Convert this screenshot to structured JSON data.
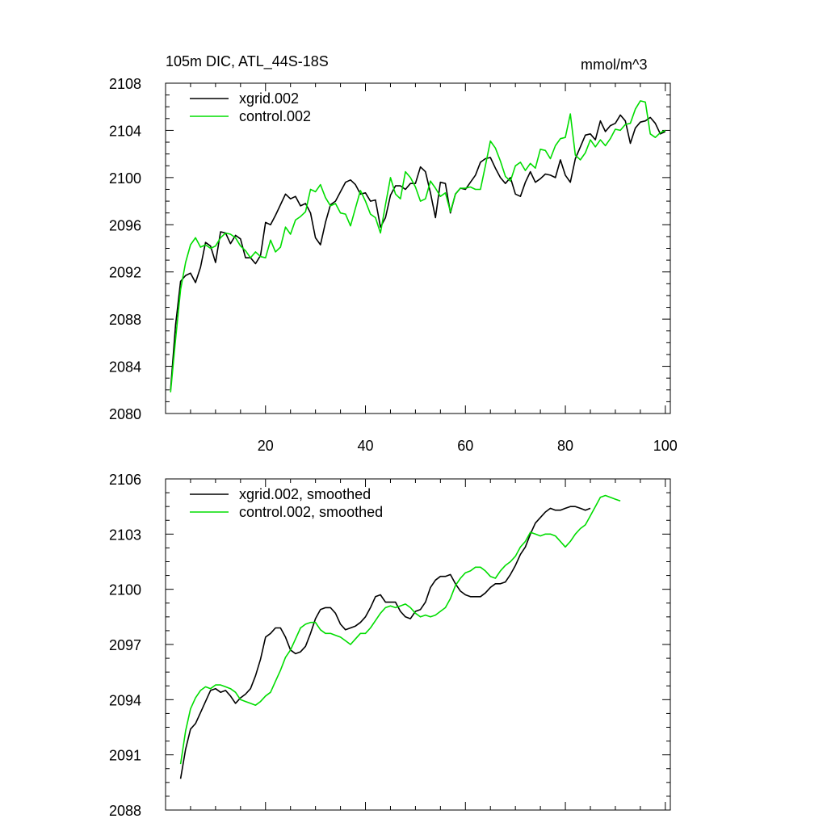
{
  "figure": {
    "left_title": "105m DIC, ATL_44S-18S",
    "right_title": "mmol/m^3"
  },
  "chart_data": [
    {
      "type": "line",
      "title": "105m DIC, ATL_44S-18S",
      "units": "mmol/m^3",
      "xlabel": "",
      "ylabel": "",
      "xlim": [
        0,
        101
      ],
      "ylim": [
        2080,
        2108
      ],
      "xticks": [
        20,
        40,
        60,
        80,
        100
      ],
      "yticks": [
        2080,
        2084,
        2088,
        2092,
        2096,
        2100,
        2104,
        2108
      ],
      "xtick_labels_visible": true,
      "grid": false,
      "legend": "top-left",
      "x_start": 1,
      "series": [
        {
          "name": "xgrid.002",
          "color": "#000000",
          "values": [
            2082.0,
            2087.5,
            2091.2,
            2091.7,
            2091.9,
            2091.1,
            2092.4,
            2094.5,
            2094.2,
            2092.8,
            2095.4,
            2095.3,
            2094.4,
            2095.1,
            2094.8,
            2093.2,
            2093.2,
            2092.7,
            2093.4,
            2096.2,
            2096.0,
            2096.8,
            2097.7,
            2098.6,
            2098.2,
            2098.4,
            2097.6,
            2097.8,
            2097.0,
            2094.9,
            2094.3,
            2096.2,
            2097.7,
            2098.0,
            2098.8,
            2099.6,
            2099.8,
            2099.4,
            2098.6,
            2098.7,
            2098.0,
            2098.1,
            2095.8,
            2096.6,
            2098.5,
            2099.3,
            2099.3,
            2099.0,
            2099.5,
            2099.5,
            2100.9,
            2100.5,
            2098.7,
            2096.6,
            2099.6,
            2099.5,
            2097.0,
            2098.6,
            2099.1,
            2099.0,
            2099.6,
            2100.2,
            2101.3,
            2101.6,
            2101.7,
            2100.8,
            2100.0,
            2099.5,
            2100.0,
            2098.6,
            2098.4,
            2099.6,
            2100.5,
            2099.6,
            2099.9,
            2100.3,
            2100.2,
            2100.0,
            2101.5,
            2100.2,
            2099.6,
            2101.6,
            2102.6,
            2103.6,
            2103.7,
            2103.2,
            2104.8,
            2103.9,
            2104.4,
            2104.6,
            2105.3,
            2104.8,
            2102.9,
            2104.2,
            2104.7,
            2104.8,
            2105.1,
            2104.6,
            2103.7,
            2103.9
          ]
        },
        {
          "name": "control.002",
          "color": "#00dd00",
          "values": [
            2081.8,
            2086.3,
            2090.5,
            2092.8,
            2094.3,
            2094.9,
            2094.1,
            2094.3,
            2094.0,
            2094.2,
            2094.9,
            2095.3,
            2095.2,
            2094.9,
            2094.2,
            2093.8,
            2093.2,
            2093.7,
            2093.3,
            2093.2,
            2094.7,
            2093.7,
            2094.1,
            2095.8,
            2095.2,
            2096.4,
            2096.7,
            2097.1,
            2099.0,
            2098.8,
            2099.4,
            2098.3,
            2097.6,
            2097.8,
            2097.0,
            2096.9,
            2095.9,
            2097.4,
            2098.9,
            2098.0,
            2096.9,
            2096.6,
            2095.3,
            2097.7,
            2100.0,
            2098.6,
            2098.2,
            2100.5,
            2100.0,
            2099.2,
            2098.0,
            2098.2,
            2099.7,
            2099.1,
            2098.4,
            2098.7,
            2097.1,
            2098.6,
            2099.1,
            2099.1,
            2099.2,
            2099.0,
            2099.0,
            2101.0,
            2103.1,
            2102.5,
            2101.4,
            2100.1,
            2099.7,
            2101.0,
            2101.3,
            2100.6,
            2101.2,
            2100.8,
            2102.4,
            2102.3,
            2101.6,
            2102.7,
            2103.3,
            2103.4,
            2105.4,
            2101.9,
            2101.5,
            2102.1,
            2103.2,
            2102.6,
            2103.2,
            2102.7,
            2103.3,
            2104.1,
            2104.0,
            2104.5,
            2104.6,
            2105.8,
            2106.5,
            2106.4,
            2103.7,
            2103.4,
            2103.8,
            2104.0
          ]
        }
      ]
    },
    {
      "type": "line",
      "title": "",
      "xlabel": "",
      "ylabel": "",
      "xlim": [
        0,
        101
      ],
      "ylim": [
        2088,
        2106
      ],
      "xticks": [
        20,
        40,
        60,
        80,
        100
      ],
      "yticks": [
        2088,
        2091,
        2094,
        2097,
        2100,
        2103,
        2106
      ],
      "xtick_labels_visible": false,
      "grid": false,
      "legend": "top-left",
      "x_start": 3,
      "series": [
        {
          "name": "xgrid.002, smoothed",
          "color": "#000000",
          "values": [
            2089.7,
            2091.3,
            2092.4,
            2092.7,
            2093.3,
            2093.9,
            2094.5,
            2094.6,
            2094.4,
            2094.5,
            2094.2,
            2093.8,
            2094.1,
            2094.3,
            2094.6,
            2095.3,
            2096.2,
            2097.4,
            2097.6,
            2097.9,
            2097.9,
            2097.4,
            2096.7,
            2096.5,
            2096.6,
            2096.9,
            2097.6,
            2098.4,
            2098.9,
            2099.0,
            2099.0,
            2098.7,
            2098.1,
            2097.8,
            2097.9,
            2098.0,
            2098.2,
            2098.5,
            2099.0,
            2099.6,
            2099.7,
            2099.3,
            2099.3,
            2099.3,
            2098.8,
            2098.5,
            2098.4,
            2098.8,
            2098.9,
            2099.3,
            2100.1,
            2100.5,
            2100.7,
            2100.7,
            2100.8,
            2100.3,
            2099.9,
            2099.7,
            2099.6,
            2099.6,
            2099.6,
            2099.8,
            2100.1,
            2100.3,
            2100.3,
            2100.4,
            2100.8,
            2101.3,
            2101.9,
            2102.3,
            2103.0,
            2103.6,
            2103.9,
            2104.2,
            2104.4,
            2104.3,
            2104.3,
            2104.4,
            2104.5,
            2104.5,
            2104.4,
            2104.3,
            2104.4
          ]
        },
        {
          "name": "control.002, smoothed",
          "color": "#00dd00",
          "values": [
            2090.5,
            2092.3,
            2093.5,
            2094.1,
            2094.5,
            2094.7,
            2094.6,
            2094.8,
            2094.8,
            2094.7,
            2094.6,
            2094.4,
            2094.0,
            2093.9,
            2093.8,
            2093.7,
            2093.9,
            2094.2,
            2094.4,
            2095.0,
            2095.6,
            2096.3,
            2096.7,
            2097.3,
            2097.9,
            2098.1,
            2098.2,
            2098.2,
            2097.8,
            2097.6,
            2097.6,
            2097.5,
            2097.4,
            2097.2,
            2097.0,
            2097.3,
            2097.6,
            2097.6,
            2097.9,
            2098.3,
            2098.7,
            2099.0,
            2099.1,
            2099.0,
            2099.1,
            2099.2,
            2099.0,
            2098.7,
            2098.5,
            2098.6,
            2098.5,
            2098.6,
            2098.8,
            2099.0,
            2099.5,
            2100.2,
            2100.6,
            2100.9,
            2101.0,
            2101.2,
            2101.2,
            2101.0,
            2100.7,
            2100.6,
            2101.0,
            2101.3,
            2101.5,
            2101.8,
            2102.3,
            2102.6,
            2103.1,
            2103.0,
            2102.9,
            2103.0,
            2103.0,
            2102.9,
            2102.6,
            2102.3,
            2102.6,
            2103.0,
            2103.3,
            2103.5,
            2104.0,
            2104.5,
            2105.0,
            2105.1,
            2105.0,
            2104.9,
            2104.8
          ]
        }
      ]
    }
  ]
}
